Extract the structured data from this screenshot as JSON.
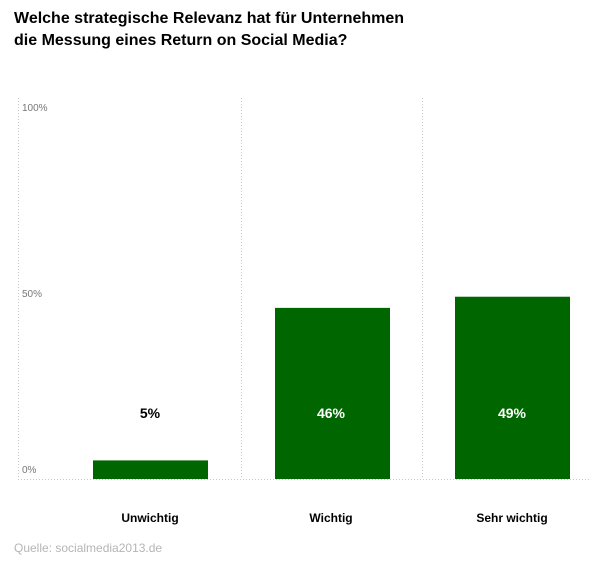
{
  "title_lines": [
    "Welche strategische Relevanz hat für Unternehmen",
    "die Messung eines Return on Social Media?"
  ],
  "source": "Quelle: socialmedia2013.de",
  "colors": {
    "bar": "#006600",
    "gridline": "#c8c8c8",
    "tick_text": "#777777"
  },
  "chart_data": {
    "type": "bar",
    "title": "Welche strategische Relevanz hat für Unternehmen die Messung eines Return on Social Media?",
    "categories": [
      "Unwichtig",
      "Wichtig",
      "Sehr wichtig"
    ],
    "values": [
      5,
      46,
      49
    ],
    "data_labels": [
      "5%",
      "46%",
      "49%"
    ],
    "yticks": [
      0,
      50,
      100
    ],
    "ytick_labels": [
      "0%",
      "50%",
      "100%"
    ],
    "ylim": [
      0,
      100
    ],
    "xlabel": "",
    "ylabel": "",
    "grid": true,
    "legend": "none"
  }
}
